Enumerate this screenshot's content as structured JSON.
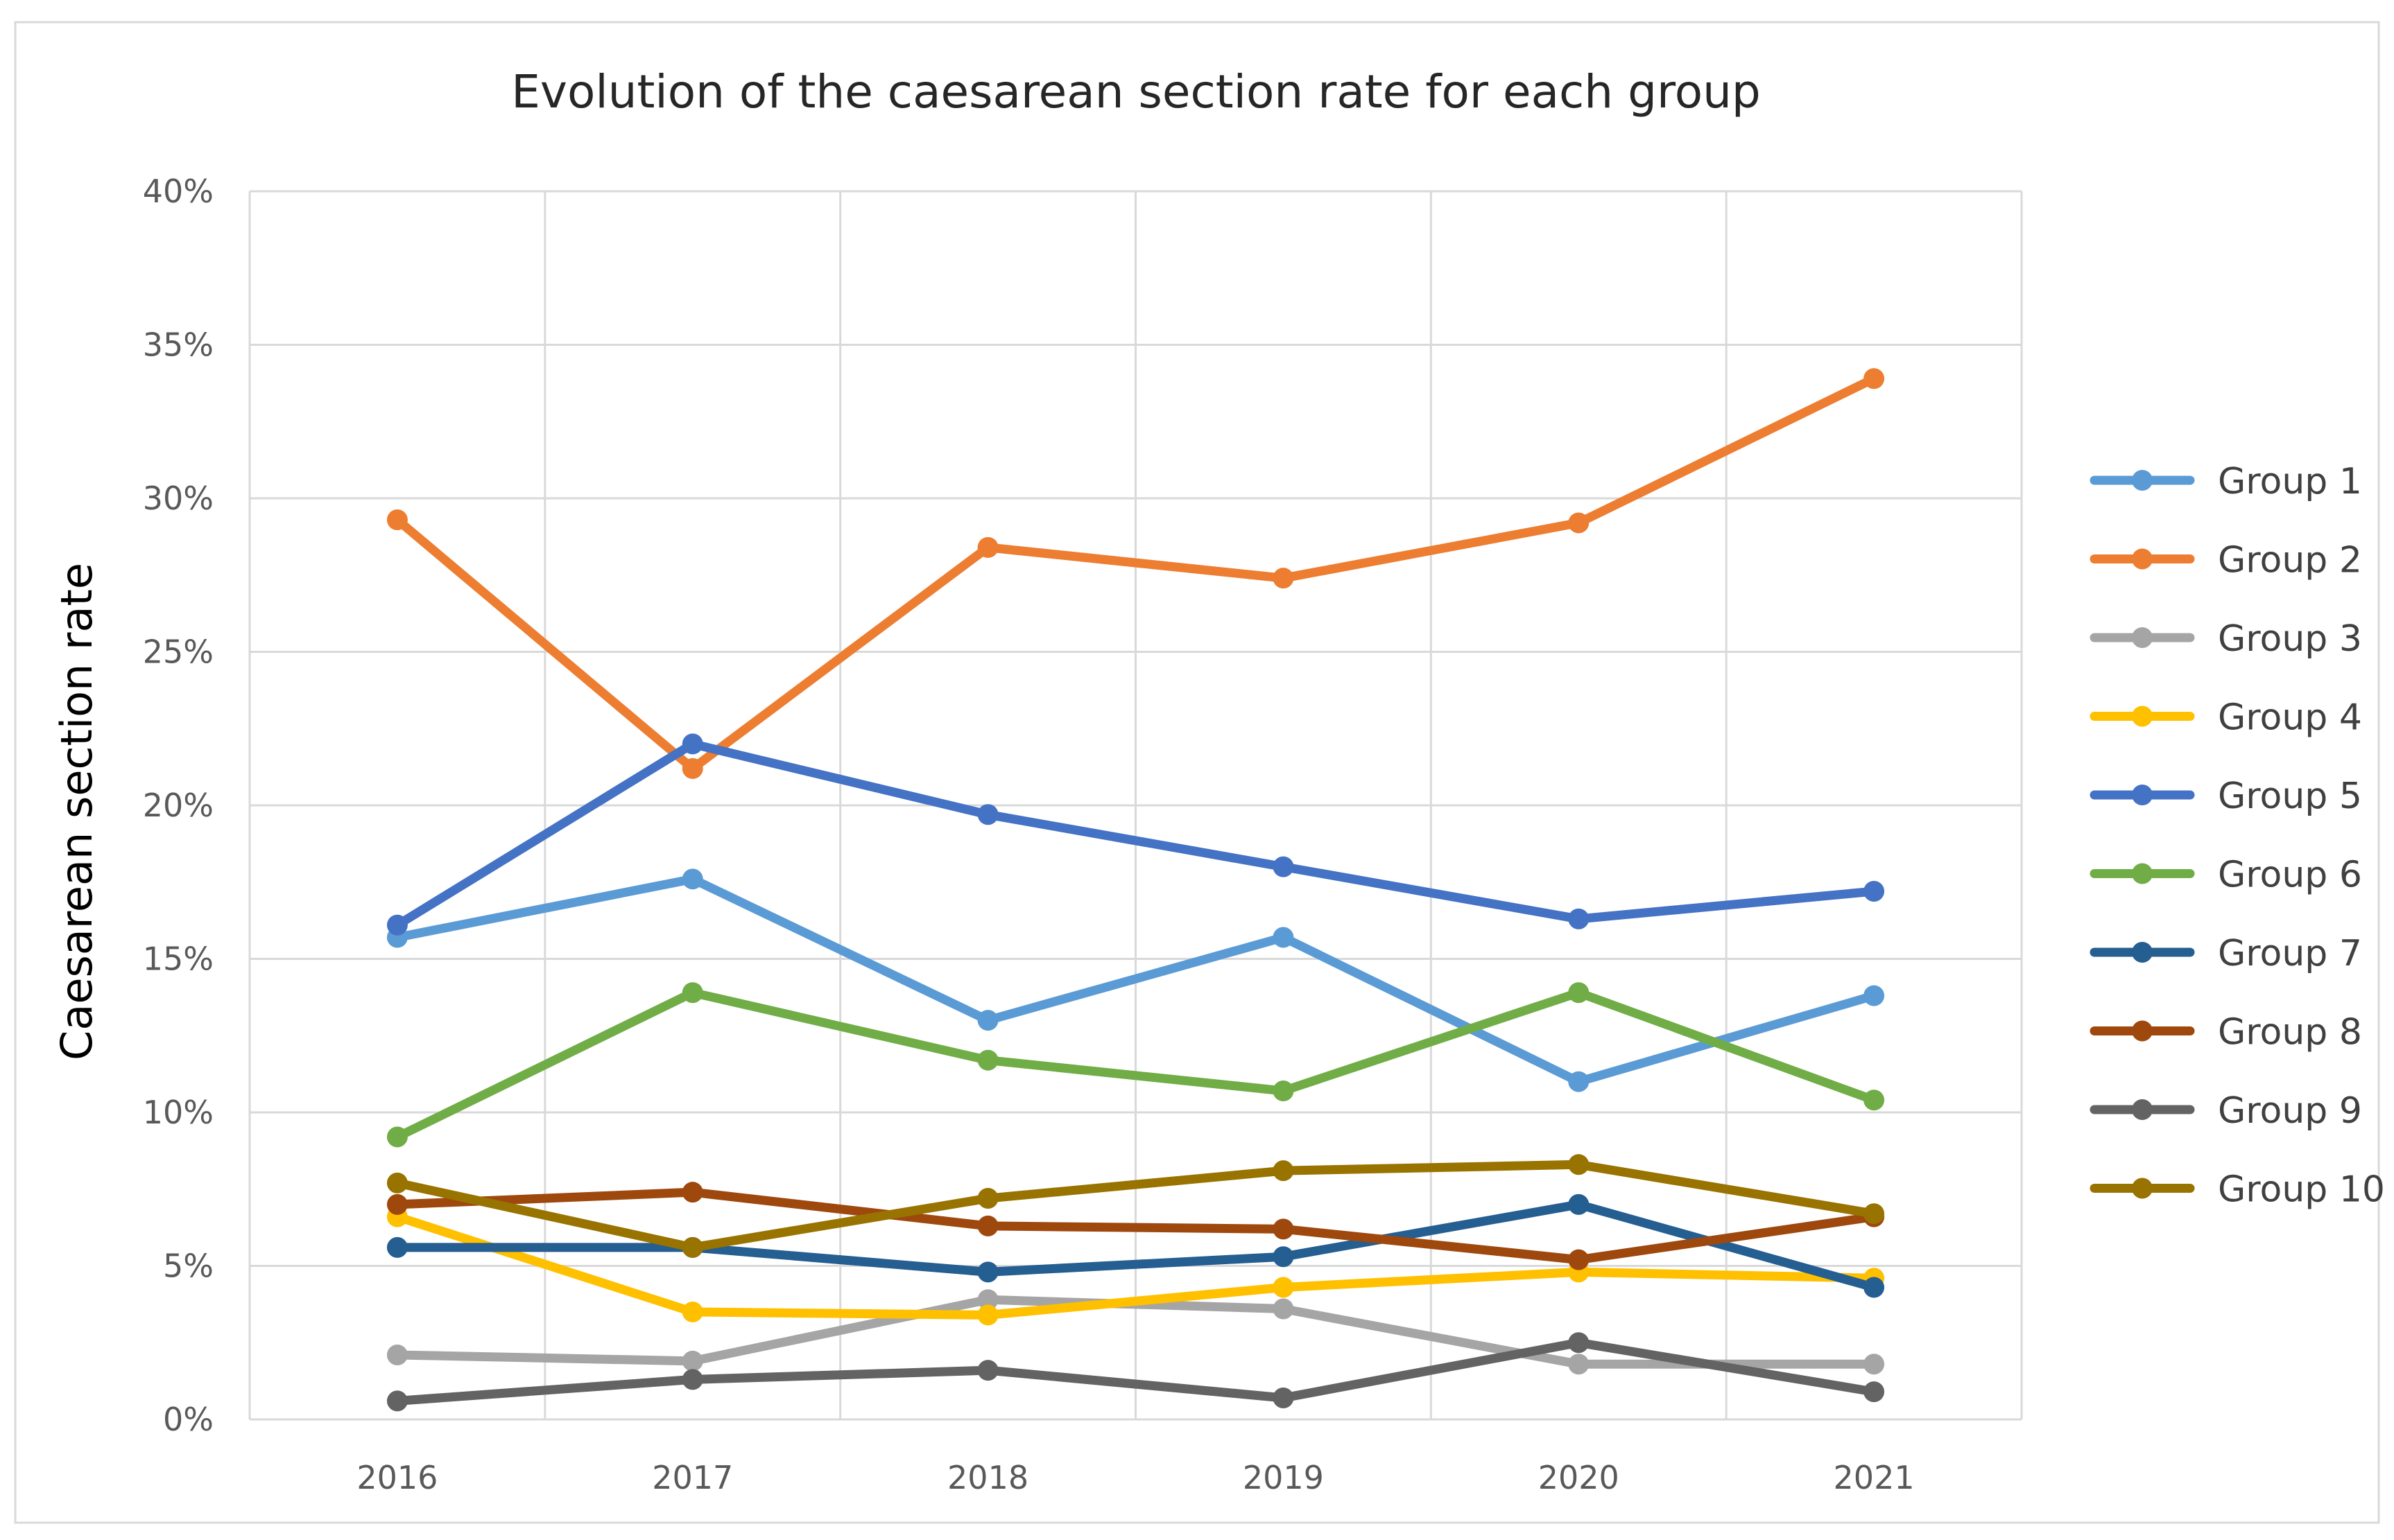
{
  "chart_data": {
    "type": "line",
    "title": "Evolution of the caesarean section rate for each group",
    "xlabel": "",
    "ylabel": "Caesarean section rate",
    "categories": [
      "2016",
      "2017",
      "2018",
      "2019",
      "2020",
      "2021"
    ],
    "ylim": [
      0,
      40
    ],
    "yticks": [
      0,
      5,
      10,
      15,
      20,
      25,
      30,
      35,
      40
    ],
    "ytick_labels": [
      "0%",
      "5%",
      "10%",
      "15%",
      "20%",
      "25%",
      "30%",
      "35%",
      "40%"
    ],
    "grid": true,
    "legend_position": "right",
    "series": [
      {
        "name": "Group 1",
        "color": "#5B9BD5",
        "values": [
          15.7,
          17.6,
          13.0,
          15.7,
          11.0,
          13.8
        ]
      },
      {
        "name": "Group 2",
        "color": "#ED7D31",
        "values": [
          29.3,
          21.2,
          28.4,
          27.4,
          29.2,
          33.9
        ]
      },
      {
        "name": "Group 3",
        "color": "#A5A5A5",
        "values": [
          2.1,
          1.9,
          3.9,
          3.6,
          1.8,
          1.8
        ]
      },
      {
        "name": "Group 4",
        "color": "#FFC000",
        "values": [
          6.6,
          3.5,
          3.4,
          4.3,
          4.8,
          4.6
        ]
      },
      {
        "name": "Group 5",
        "color": "#4472C4",
        "values": [
          16.1,
          22.0,
          19.7,
          18.0,
          16.3,
          17.2
        ]
      },
      {
        "name": "Group 6",
        "color": "#70AD47",
        "values": [
          9.2,
          13.9,
          11.7,
          10.7,
          13.9,
          10.4
        ]
      },
      {
        "name": "Group 7",
        "color": "#255E91",
        "values": [
          5.6,
          5.6,
          4.8,
          5.3,
          7.0,
          4.3
        ]
      },
      {
        "name": "Group 8",
        "color": "#9E480E",
        "values": [
          7.0,
          7.4,
          6.3,
          6.2,
          5.2,
          6.6
        ]
      },
      {
        "name": "Group 9",
        "color": "#636363",
        "values": [
          0.6,
          1.3,
          1.6,
          0.7,
          2.5,
          0.9
        ]
      },
      {
        "name": "Group 10",
        "color": "#997300",
        "values": [
          7.7,
          5.6,
          7.2,
          8.1,
          8.3,
          6.7
        ]
      }
    ]
  }
}
